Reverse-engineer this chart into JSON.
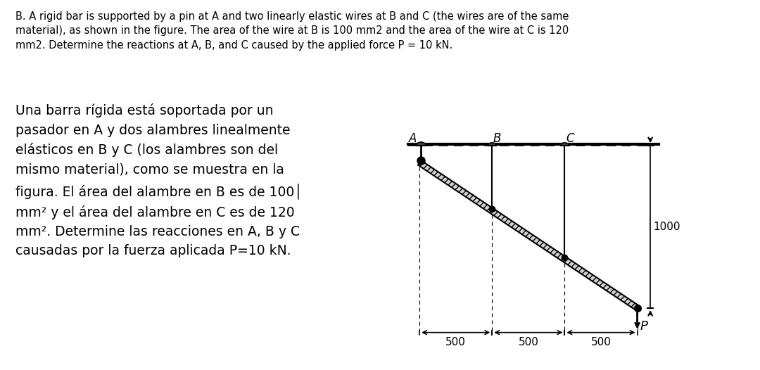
{
  "bg_color": "#ffffff",
  "title_text": "B. A rigid bar is supported by a pin at A and two linearly elastic wires at B and C (the wires are of the same\nmaterial), as shown in the figure. The area of the wire at B is 100 mm2 and the area of the wire at C is 120\nmm2. Determine the reactions at A, B, and C caused by the applied force P = 10 kN.",
  "spanish_text_lines": [
    "Una barra rígida está soportada por un",
    "pasador en A y dos alambres linealmente",
    "elásticos en B y C (los alambres son del",
    "mismo material), como se muestra en la",
    "figura. El área del alambre en B es de 100│",
    "mm² y el área del alambre en C es de 120",
    "mm². Determine las reacciones en A, B y C",
    "causadas por la fuerza aplicada P=10 kN."
  ],
  "text_color": "#000000",
  "title_fontsize": 10.5,
  "spanish_fontsize": 13.5,
  "diagram_fontsize": 11,
  "diagram_label_fontsize": 12
}
